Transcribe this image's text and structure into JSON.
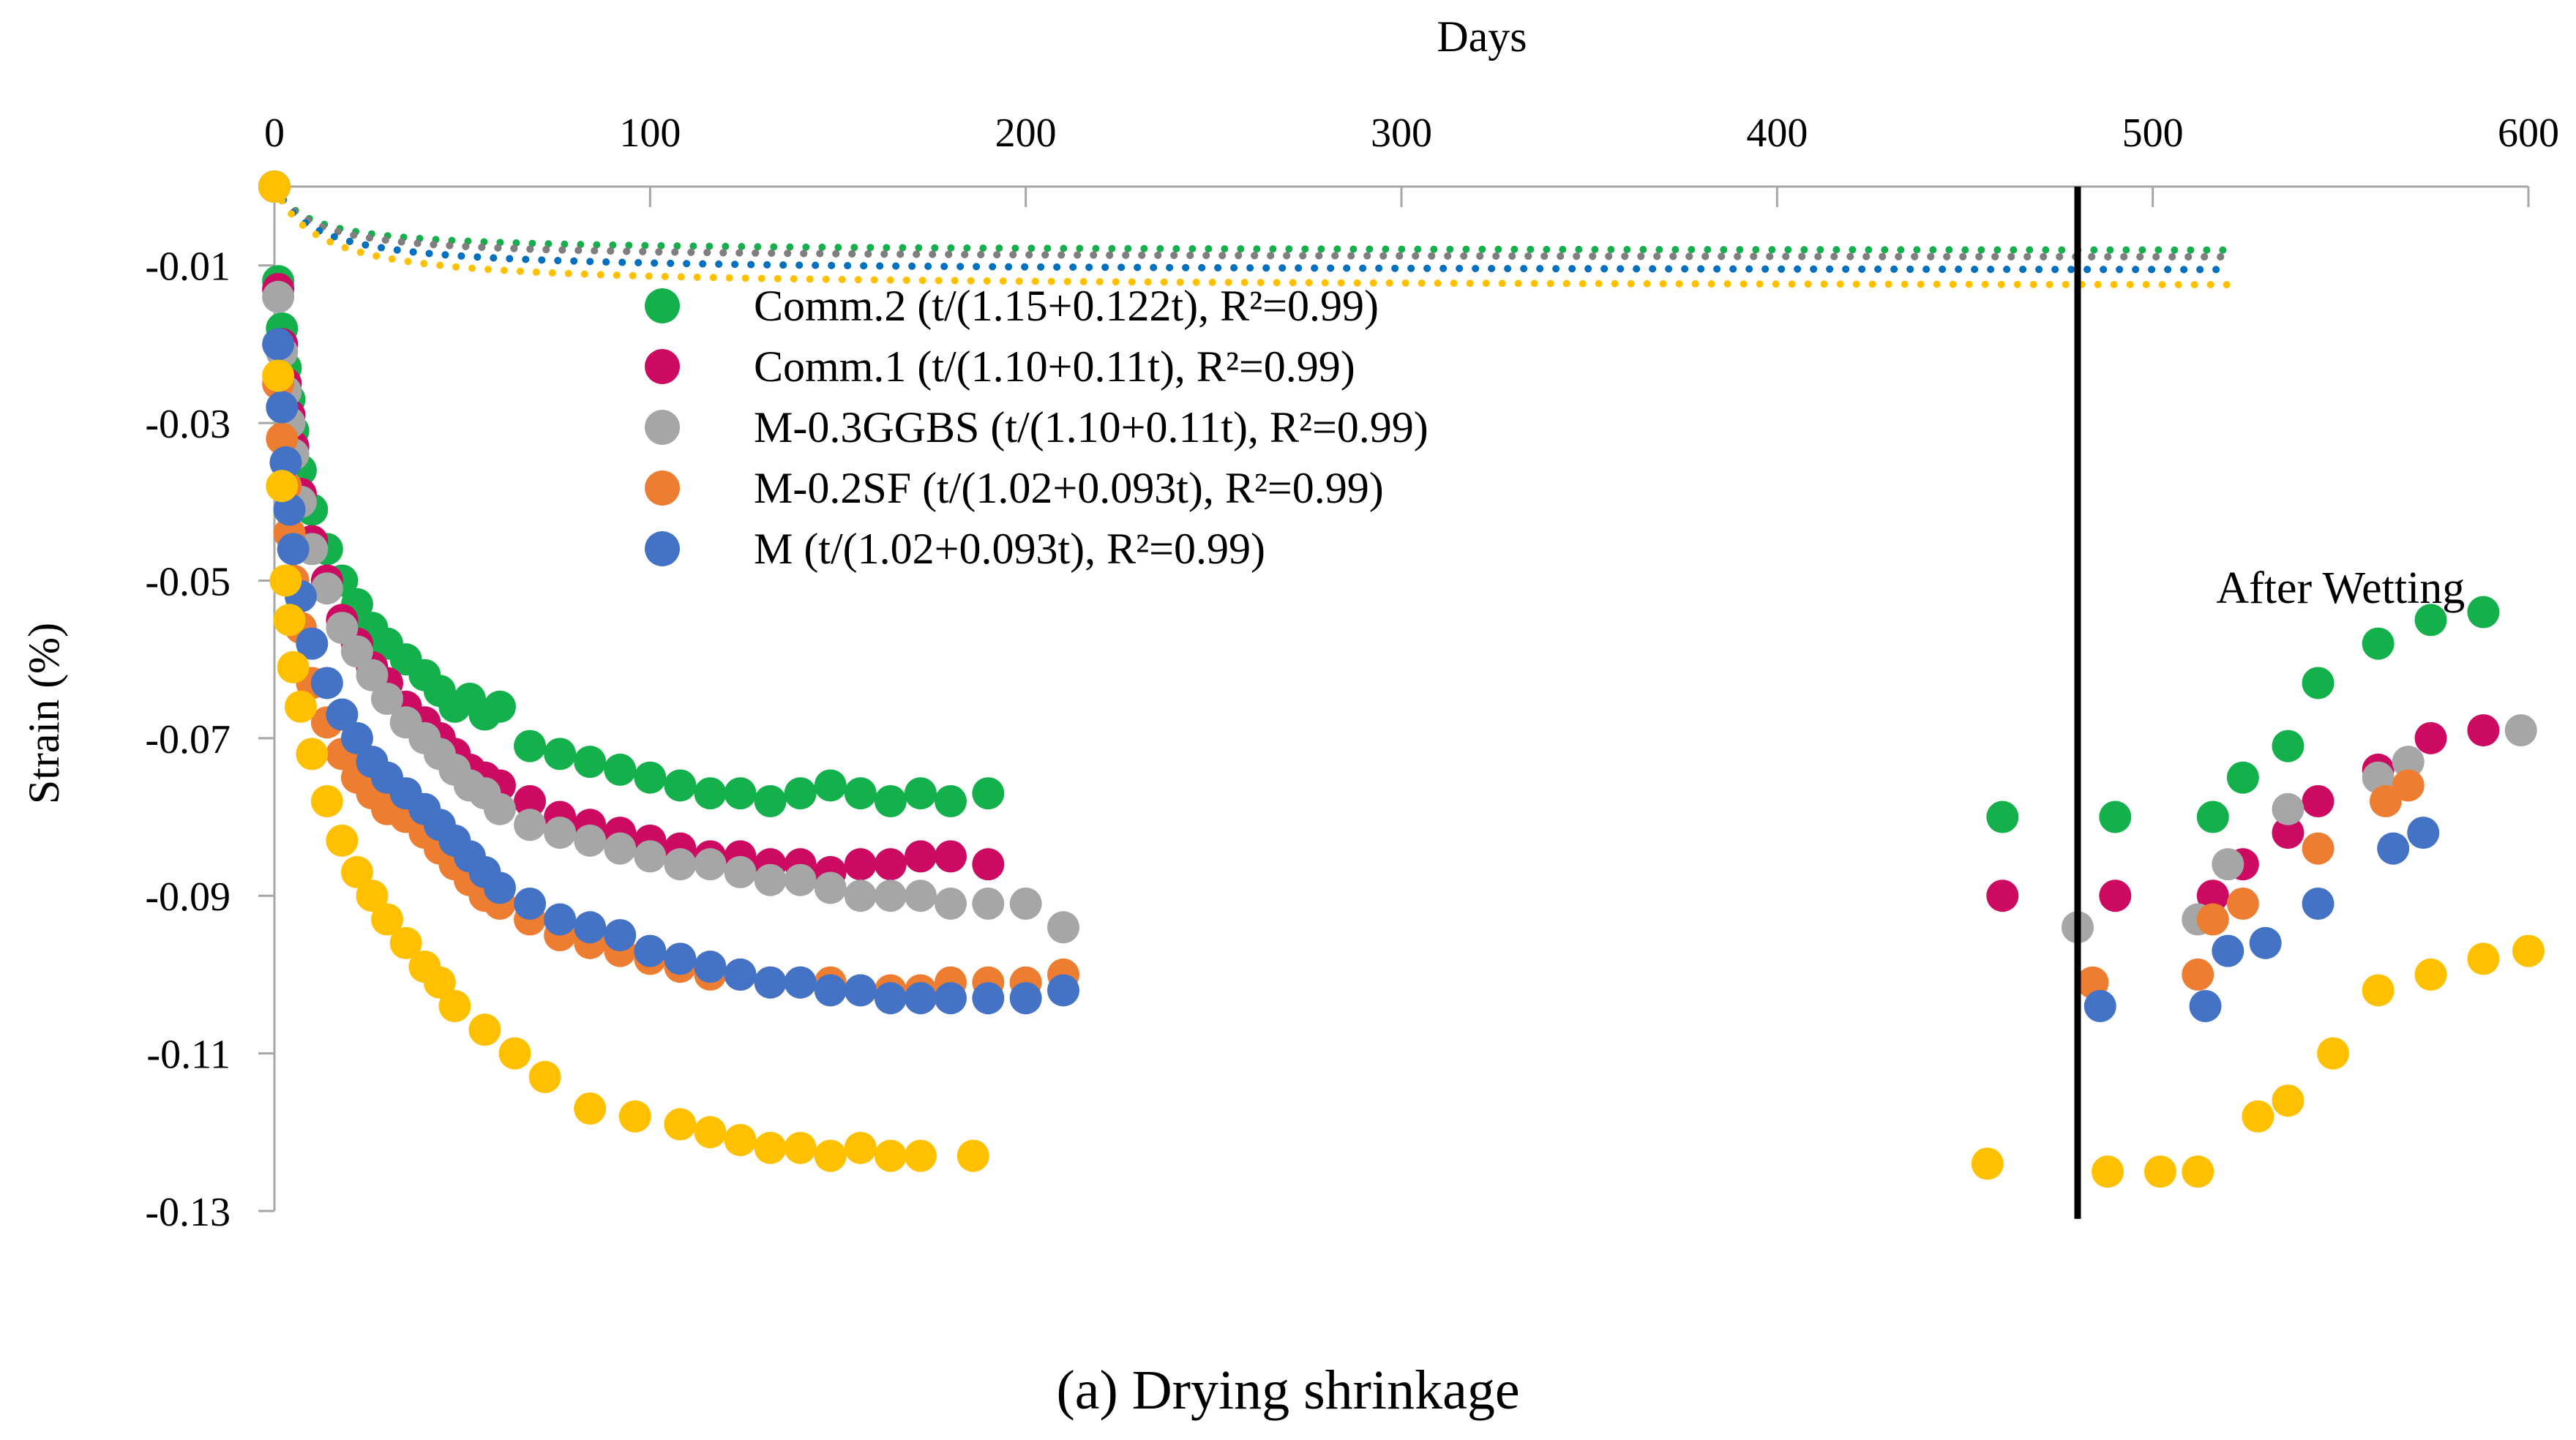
{
  "chart_data": {
    "type": "scatter",
    "title": "",
    "caption": "(a) Drying shrinkage",
    "xlabel": "Days",
    "ylabel": "Strain (%)",
    "xlim": [
      0,
      600
    ],
    "ylim": [
      -0.13,
      0.0
    ],
    "x_ticks": [
      0,
      100,
      200,
      300,
      400,
      500,
      600
    ],
    "y_ticks": [
      -0.01,
      -0.03,
      -0.05,
      -0.07,
      -0.09,
      -0.11,
      -0.13
    ],
    "x_axis_position": "top",
    "legend_position": "top-left",
    "annotation": {
      "text": "After Wetting",
      "x": 550,
      "y": -0.051
    },
    "marker_line": {
      "x": 480,
      "y_from": 0.0,
      "y_to": -0.131
    },
    "series": [
      {
        "name": "Comm.2 (t/(1.15+0.122t), R²=0.99)",
        "color": "#13b04b",
        "trend_color": "#13b04b",
        "fit": {
          "a": 1.15,
          "b": 0.122,
          "x_end": 520
        },
        "x": [
          0,
          1,
          2,
          3,
          4,
          5,
          7,
          10,
          14,
          18,
          22,
          26,
          30,
          35,
          40,
          44,
          48,
          52,
          56,
          60,
          68,
          76,
          84,
          92,
          100,
          108,
          116,
          124,
          132,
          140,
          148,
          156,
          164,
          172,
          180,
          190,
          460,
          490,
          516,
          524,
          536,
          544,
          560,
          574,
          588
        ],
        "y": [
          0.0,
          -0.012,
          -0.018,
          -0.023,
          -0.027,
          -0.031,
          -0.036,
          -0.041,
          -0.046,
          -0.05,
          -0.053,
          -0.056,
          -0.058,
          -0.06,
          -0.062,
          -0.064,
          -0.066,
          -0.065,
          -0.067,
          -0.066,
          -0.071,
          -0.072,
          -0.073,
          -0.074,
          -0.075,
          -0.076,
          -0.077,
          -0.077,
          -0.078,
          -0.077,
          -0.076,
          -0.077,
          -0.078,
          -0.077,
          -0.078,
          -0.077,
          -0.08,
          -0.08,
          -0.08,
          -0.075,
          -0.071,
          -0.063,
          -0.058,
          -0.055,
          -0.054
        ]
      },
      {
        "name": "Comm.1 (t/(1.10+0.11t), R²=0.99)",
        "color": "#cc0a62",
        "trend_color": "#cc0a62",
        "fit": {
          "a": 1.1,
          "b": 0.11,
          "x_end": 520
        },
        "x": [
          0,
          1,
          2,
          3,
          4,
          5,
          7,
          10,
          14,
          18,
          22,
          26,
          30,
          35,
          40,
          44,
          48,
          52,
          56,
          60,
          68,
          76,
          84,
          92,
          100,
          108,
          116,
          124,
          132,
          140,
          148,
          156,
          164,
          172,
          180,
          190,
          460,
          490,
          516,
          524,
          536,
          544,
          560,
          574,
          588
        ],
        "y": [
          0.0,
          -0.013,
          -0.02,
          -0.025,
          -0.029,
          -0.033,
          -0.039,
          -0.045,
          -0.05,
          -0.055,
          -0.058,
          -0.061,
          -0.063,
          -0.066,
          -0.068,
          -0.07,
          -0.072,
          -0.074,
          -0.075,
          -0.076,
          -0.078,
          -0.08,
          -0.081,
          -0.082,
          -0.083,
          -0.084,
          -0.085,
          -0.085,
          -0.086,
          -0.086,
          -0.087,
          -0.086,
          -0.086,
          -0.085,
          -0.085,
          -0.086,
          -0.09,
          -0.09,
          -0.09,
          -0.086,
          -0.082,
          -0.078,
          -0.074,
          -0.07,
          -0.069
        ]
      },
      {
        "name": "M-0.3GGBS (t/(1.10+0.11t), R²=0.99)",
        "color": "#a6a6a6",
        "trend_color": "#7f7f7f",
        "fit": {
          "a": 1.1,
          "b": 0.11,
          "x_end": 520
        },
        "x": [
          0,
          1,
          2,
          3,
          4,
          5,
          7,
          10,
          14,
          18,
          22,
          26,
          30,
          35,
          40,
          44,
          48,
          52,
          56,
          60,
          68,
          76,
          84,
          92,
          100,
          108,
          116,
          124,
          132,
          140,
          148,
          156,
          164,
          172,
          180,
          190,
          200,
          210,
          480,
          512,
          520,
          536,
          560,
          568,
          598
        ],
        "y": [
          0.0,
          -0.014,
          -0.021,
          -0.026,
          -0.03,
          -0.034,
          -0.04,
          -0.046,
          -0.051,
          -0.056,
          -0.059,
          -0.062,
          -0.065,
          -0.068,
          -0.07,
          -0.072,
          -0.074,
          -0.076,
          -0.077,
          -0.079,
          -0.081,
          -0.082,
          -0.083,
          -0.084,
          -0.085,
          -0.086,
          -0.086,
          -0.087,
          -0.088,
          -0.088,
          -0.089,
          -0.09,
          -0.09,
          -0.09,
          -0.091,
          -0.091,
          -0.091,
          -0.094,
          -0.094,
          -0.093,
          -0.086,
          -0.079,
          -0.075,
          -0.073,
          -0.069
        ]
      },
      {
        "name": "M-0.2SF (t/(1.02+0.093t), R²=0.99)",
        "color": "#ed7d31",
        "trend_color": "#ed7d31",
        "fit": {
          "a": 1.02,
          "b": 0.093,
          "x_end": 520
        },
        "x": [
          0,
          1,
          2,
          3,
          4,
          5,
          7,
          10,
          14,
          18,
          22,
          26,
          30,
          35,
          40,
          44,
          48,
          52,
          56,
          60,
          68,
          76,
          84,
          92,
          100,
          108,
          116,
          124,
          132,
          140,
          148,
          156,
          164,
          172,
          180,
          190,
          200,
          210,
          484,
          512,
          516,
          524,
          544,
          562,
          568
        ],
        "y": [
          0.0,
          -0.025,
          -0.032,
          -0.038,
          -0.044,
          -0.05,
          -0.056,
          -0.063,
          -0.068,
          -0.072,
          -0.075,
          -0.077,
          -0.079,
          -0.08,
          -0.082,
          -0.084,
          -0.086,
          -0.088,
          -0.09,
          -0.091,
          -0.093,
          -0.095,
          -0.096,
          -0.097,
          -0.098,
          -0.099,
          -0.1,
          -0.1,
          -0.101,
          -0.101,
          -0.101,
          -0.102,
          -0.102,
          -0.102,
          -0.101,
          -0.101,
          -0.101,
          -0.1,
          -0.101,
          -0.1,
          -0.093,
          -0.091,
          -0.084,
          -0.078,
          -0.076
        ]
      },
      {
        "name": "M (t/(1.02+0.093t), R²=0.99)",
        "color": "#4472c4",
        "trend_color": "#0070c0",
        "fit": {
          "a": 1.02,
          "b": 0.093,
          "x_end": 520
        },
        "x": [
          0,
          1,
          2,
          3,
          4,
          5,
          7,
          10,
          14,
          18,
          22,
          26,
          30,
          35,
          40,
          44,
          48,
          52,
          56,
          60,
          68,
          76,
          84,
          92,
          100,
          108,
          116,
          124,
          132,
          140,
          148,
          156,
          164,
          172,
          180,
          190,
          200,
          210,
          486,
          514,
          520,
          530,
          544,
          564,
          572
        ],
        "y": [
          0.0,
          -0.02,
          -0.028,
          -0.035,
          -0.041,
          -0.046,
          -0.052,
          -0.058,
          -0.063,
          -0.067,
          -0.07,
          -0.073,
          -0.075,
          -0.077,
          -0.079,
          -0.081,
          -0.083,
          -0.085,
          -0.087,
          -0.089,
          -0.091,
          -0.093,
          -0.094,
          -0.095,
          -0.097,
          -0.098,
          -0.099,
          -0.1,
          -0.101,
          -0.101,
          -0.102,
          -0.102,
          -0.103,
          -0.103,
          -0.103,
          -0.103,
          -0.103,
          -0.102,
          -0.104,
          -0.104,
          -0.097,
          -0.096,
          -0.091,
          -0.084,
          -0.082
        ]
      },
      {
        "name": "",
        "color": "#ffc000",
        "trend_color": "#ffc000",
        "fit": {
          "a": 0.95,
          "b": 0.0785,
          "x_end": 520
        },
        "x": [
          0,
          1,
          2,
          3,
          4,
          5,
          7,
          10,
          14,
          18,
          22,
          26,
          30,
          35,
          40,
          44,
          48,
          56,
          64,
          72,
          84,
          96,
          108,
          116,
          124,
          132,
          140,
          148,
          156,
          164,
          172,
          186,
          456,
          488,
          502,
          512,
          528,
          536,
          548,
          560,
          574,
          588,
          600
        ],
        "y": [
          0.0,
          -0.024,
          -0.038,
          -0.05,
          -0.055,
          -0.061,
          -0.066,
          -0.072,
          -0.078,
          -0.083,
          -0.087,
          -0.09,
          -0.093,
          -0.096,
          -0.099,
          -0.101,
          -0.104,
          -0.107,
          -0.11,
          -0.113,
          -0.117,
          -0.118,
          -0.119,
          -0.12,
          -0.121,
          -0.122,
          -0.122,
          -0.123,
          -0.122,
          -0.123,
          -0.123,
          -0.123,
          -0.124,
          -0.125,
          -0.125,
          -0.125,
          -0.118,
          -0.116,
          -0.11,
          -0.102,
          -0.1,
          -0.098,
          -0.097
        ]
      }
    ]
  }
}
